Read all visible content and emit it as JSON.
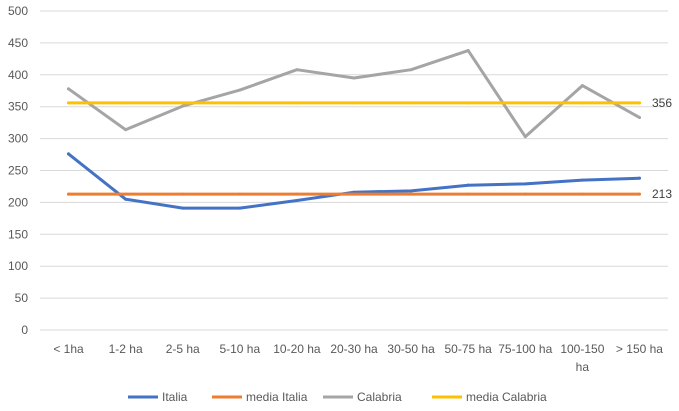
{
  "chart_data": {
    "type": "line",
    "title": "",
    "xlabel": "",
    "ylabel": "",
    "ylim": [
      0,
      500
    ],
    "yticks": [
      0,
      50,
      100,
      150,
      200,
      250,
      300,
      350,
      400,
      450,
      500
    ],
    "grid": true,
    "legend_position": "bottom",
    "categories": [
      "< 1ha",
      "1-2 ha",
      "2-5 ha",
      "5-10 ha",
      "10-20 ha",
      "20-30 ha",
      "30-50 ha",
      "50-75 ha",
      "75-100 ha",
      "100-150 ha",
      "> 150 ha"
    ],
    "series": [
      {
        "name": "Italia",
        "color": "#4472C4",
        "values": [
          276,
          205,
          191,
          191,
          203,
          216,
          218,
          227,
          229,
          235,
          238
        ]
      },
      {
        "name": "media Italia",
        "color": "#ED7D31",
        "values": [
          213,
          213,
          213,
          213,
          213,
          213,
          213,
          213,
          213,
          213,
          213
        ]
      },
      {
        "name": "Calabria",
        "color": "#A5A5A5",
        "values": [
          378,
          314,
          351,
          376,
          408,
          395,
          408,
          438,
          303,
          383,
          333
        ]
      },
      {
        "name": "media Calabria",
        "color": "#FFC000",
        "values": [
          356,
          356,
          356,
          356,
          356,
          356,
          356,
          356,
          356,
          356,
          356
        ]
      }
    ],
    "annotations": [
      {
        "text": "356",
        "value": 356
      },
      {
        "text": "213",
        "value": 213
      }
    ]
  }
}
